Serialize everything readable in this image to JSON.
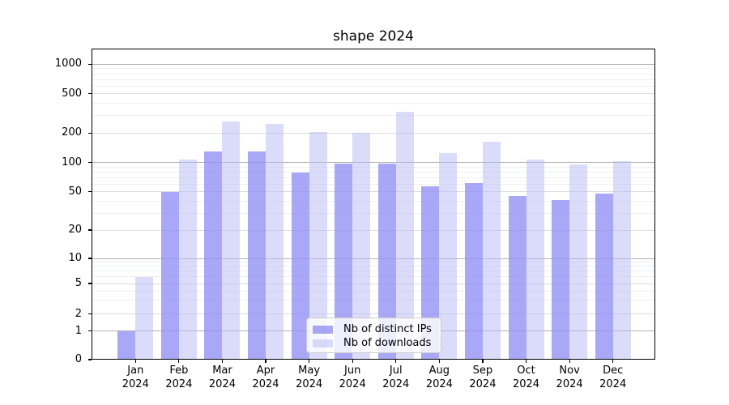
{
  "chart_data": {
    "type": "bar",
    "title": "shape 2024",
    "categories": [
      "Jan 2024",
      "Feb 2024",
      "Mar 2024",
      "Apr 2024",
      "May 2024",
      "Jun 2024",
      "Jul 2024",
      "Aug 2024",
      "Sep 2024",
      "Oct 2024",
      "Nov 2024",
      "Dec 2024"
    ],
    "series": [
      {
        "name": "Nb of distinct IPs",
        "color": "#a8a8f6",
        "fill": "rgba(146,146,244,0.8)",
        "values": [
          1,
          50,
          130,
          130,
          79,
          98,
          98,
          57,
          62,
          45,
          41,
          48
        ]
      },
      {
        "name": "Nb of downloads",
        "color": "#dbdbfa",
        "fill": "rgba(183,183,245,0.5)",
        "values": [
          6,
          108,
          263,
          246,
          203,
          199,
          327,
          126,
          162,
          107,
          96,
          103
        ]
      }
    ],
    "yscale": "symlog",
    "yticks": [
      0,
      1,
      2,
      5,
      10,
      20,
      50,
      100,
      200,
      500,
      1000
    ],
    "ylim": [
      0,
      1440
    ],
    "xlabel": "",
    "ylabel": "",
    "grid": true,
    "legend_position": "lower center",
    "gridline_colors": {
      "decade": "#b3b3b3",
      "labeled": "#dcdce1",
      "minor": "#eef0f3"
    }
  }
}
